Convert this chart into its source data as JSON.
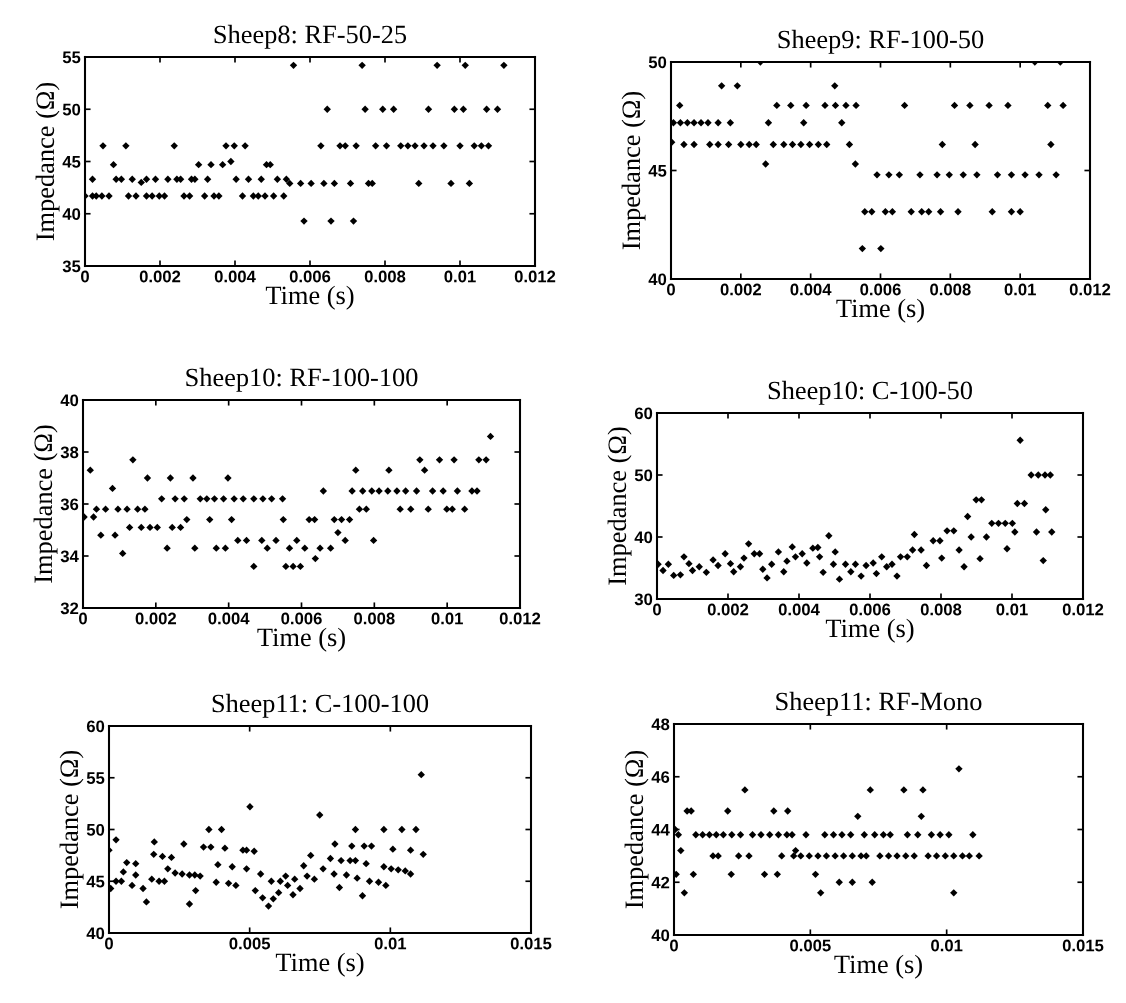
{
  "chart_data": [
    {
      "type": "scatter",
      "title": "Sheep8: RF-50-25",
      "xlabel": "Time (s)",
      "ylabel": "Impedance (Ω)",
      "color": "#000000",
      "marker": "diamond",
      "xlim": [
        0,
        0.012
      ],
      "ylim": [
        35,
        55
      ],
      "xticks": [
        0,
        0.002,
        0.004,
        0.006,
        0.008,
        0.01,
        0.012
      ],
      "yticks": [
        35,
        40,
        45,
        50,
        55
      ],
      "x": [
        0.0,
        0.0002,
        0.0003,
        0.00045,
        0.00064,
        0.00116,
        0.00136,
        0.00164,
        0.00179,
        0.00198,
        0.00212,
        0.00264,
        0.00279,
        0.00319,
        0.00344,
        0.00357,
        0.0042,
        0.00449,
        0.00462,
        0.0048,
        0.00503,
        0.0053,
        0.0002,
        0.00083,
        0.00097,
        0.00126,
        0.00164,
        0.00188,
        0.00221,
        0.00245,
        0.00255,
        0.00284,
        0.00293,
        0.00327,
        0.00403,
        0.00436,
        0.0047,
        0.00513,
        0.00537,
        0.0015,
        0.00076,
        0.00303,
        0.00336,
        0.00367,
        0.00389,
        0.00484,
        0.00494,
        0.00048,
        0.00109,
        0.00238,
        0.00376,
        0.00398,
        0.00427,
        0.00629,
        0.0068,
        0.00694,
        0.00723,
        0.00775,
        0.00804,
        0.00842,
        0.00861,
        0.0088,
        0.00904,
        0.00928,
        0.00957,
        0.01,
        0.01038,
        0.01057,
        0.01076,
        0.00546,
        0.00575,
        0.00603,
        0.00637,
        0.00665,
        0.00708,
        0.00756,
        0.00766,
        0.0089,
        0.00976,
        0.01025,
        0.00584,
        0.00656,
        0.00716,
        0.00646,
        0.00747,
        0.00794,
        0.00823,
        0.00916,
        0.00985,
        0.01009,
        0.01071,
        0.011,
        0.00556,
        0.00739,
        0.00939,
        0.01014,
        0.01117
      ],
      "values": [
        41.7,
        41.7,
        41.7,
        41.7,
        41.7,
        41.7,
        41.7,
        41.7,
        41.7,
        41.7,
        41.7,
        41.7,
        41.7,
        41.7,
        41.7,
        41.7,
        41.7,
        41.7,
        41.7,
        41.7,
        41.7,
        41.7,
        43.3,
        43.3,
        43.3,
        43.3,
        43.3,
        43.3,
        43.3,
        43.3,
        43.3,
        43.3,
        43.3,
        43.3,
        43.3,
        43.3,
        43.3,
        43.3,
        43.3,
        43.0,
        44.7,
        44.7,
        44.7,
        44.7,
        45.0,
        44.7,
        44.7,
        46.5,
        46.5,
        46.5,
        46.5,
        46.5,
        46.5,
        46.5,
        46.5,
        46.5,
        46.5,
        46.5,
        46.5,
        46.5,
        46.5,
        46.5,
        46.5,
        46.5,
        46.5,
        46.5,
        46.5,
        46.5,
        46.5,
        42.9,
        42.9,
        42.9,
        42.9,
        42.9,
        42.9,
        42.9,
        42.9,
        42.9,
        42.9,
        42.9,
        39.3,
        39.3,
        39.3,
        50.0,
        50.0,
        50.0,
        50.0,
        50.0,
        50.0,
        50.0,
        50.0,
        50.0,
        54.2,
        54.2,
        54.2,
        54.2,
        54.2
      ]
    },
    {
      "type": "scatter",
      "title": "Sheep9: RF-100-50",
      "xlabel": "Time (s)",
      "ylabel": "Impedance (Ω)",
      "color": "#000000",
      "marker": "diamond",
      "xlim": [
        0,
        0.012
      ],
      "ylim": [
        40,
        50
      ],
      "xticks": [
        0,
        0.002,
        0.004,
        0.006,
        0.008,
        0.01,
        0.012
      ],
      "yticks": [
        40,
        45,
        50
      ],
      "x": [
        7e-05,
        0.00027,
        0.00047,
        0.00066,
        0.00086,
        0.00106,
        0.00135,
        0.0017,
        0.00279,
        0.0038,
        0.00489,
        2e-05,
        0.00037,
        0.00066,
        0.00111,
        0.00135,
        0.00165,
        0.002,
        0.00224,
        0.00244,
        0.00293,
        0.00323,
        0.00348,
        0.00372,
        0.00397,
        0.00422,
        0.00446,
        0.00511,
        0.00777,
        0.00871,
        0.01088,
        0.00025,
        0.00303,
        0.00343,
        0.00387,
        0.00441,
        0.00471,
        0.00501,
        0.0053,
        0.00669,
        0.00812,
        0.00856,
        0.00911,
        0.00965,
        0.01079,
        0.01123,
        0.00145,
        0.0019,
        0.00469,
        0.00271,
        0.00528,
        0.0059,
        0.00624,
        0.00654,
        0.00713,
        0.00762,
        0.00797,
        0.00837,
        0.00876,
        0.00935,
        0.00975,
        0.01014,
        0.01054,
        0.01103,
        0.00555,
        0.00575,
        0.00614,
        0.00634,
        0.00688,
        0.00718,
        0.00738,
        0.00772,
        0.00822,
        0.0092,
        0.00975,
        0.01,
        0.00548,
        0.00601,
        0.00256,
        0.01042,
        0.01115
      ],
      "values": [
        47.2,
        47.2,
        47.2,
        47.2,
        47.2,
        47.2,
        47.2,
        47.2,
        47.2,
        47.2,
        47.2,
        46.3,
        46.2,
        46.2,
        46.2,
        46.2,
        46.2,
        46.2,
        46.2,
        46.2,
        46.2,
        46.2,
        46.2,
        46.2,
        46.2,
        46.2,
        46.2,
        46.2,
        46.2,
        46.2,
        46.2,
        48.0,
        48.0,
        48.0,
        48.0,
        48.0,
        48.0,
        48.0,
        48.0,
        48.0,
        48.0,
        48.0,
        48.0,
        48.0,
        48.0,
        48.0,
        48.9,
        48.9,
        48.9,
        45.3,
        45.3,
        44.8,
        44.8,
        44.8,
        44.8,
        44.8,
        44.8,
        44.8,
        44.8,
        44.8,
        44.8,
        44.8,
        44.8,
        44.8,
        43.1,
        43.1,
        43.1,
        43.1,
        43.1,
        43.1,
        43.1,
        43.1,
        43.1,
        43.1,
        43.1,
        43.1,
        41.4,
        41.4,
        50.0,
        50.0,
        50.0
      ]
    },
    {
      "type": "scatter",
      "title": "Sheep10: RF-100-100",
      "xlabel": "Time (s)",
      "ylabel": "Impedance (Ω)",
      "color": "#000000",
      "marker": "diamond",
      "xlim": [
        0,
        0.012
      ],
      "ylim": [
        32,
        40
      ],
      "xticks": [
        0,
        0.002,
        0.004,
        0.006,
        0.008,
        0.01,
        0.012
      ],
      "yticks": [
        32,
        34,
        36,
        38,
        40
      ],
      "x": [
        3e-05,
        0.0002,
        0.00029,
        0.00037,
        0.00062,
        0.00049,
        0.00081,
        0.00088,
        0.00096,
        0.00121,
        0.00109,
        0.00128,
        0.00137,
        0.0015,
        0.0017,
        0.0016,
        0.00184,
        0.00204,
        0.00177,
        0.00216,
        0.00231,
        0.0024,
        0.00245,
        0.00268,
        0.00253,
        0.00278,
        0.00285,
        0.00302,
        0.00307,
        0.00322,
        0.0034,
        0.00361,
        0.00386,
        0.00348,
        0.00366,
        0.00391,
        0.00398,
        0.00408,
        0.00415,
        0.0044,
        0.00469,
        0.00494,
        0.00518,
        0.00548,
        0.00425,
        0.00449,
        0.00469,
        0.00491,
        0.00506,
        0.0053,
        0.0055,
        0.00567,
        0.00557,
        0.00577,
        0.00597,
        0.00587,
        0.00609,
        0.00621,
        0.00636,
        0.00638,
        0.00651,
        0.0066,
        0.0068,
        0.0069,
        0.0071,
        0.00732,
        0.007,
        0.0072,
        0.00739,
        0.00749,
        0.00759,
        0.00778,
        0.00768,
        0.00793,
        0.00813,
        0.00837,
        0.00862,
        0.00886,
        0.00916,
        0.00798,
        0.0084,
        0.00871,
        0.009,
        0.00925,
        0.00938,
        0.00948,
        0.0096,
        0.00989,
        0.00979,
        0.00999,
        0.01014,
        0.01019,
        0.01028,
        0.01048,
        0.01068,
        0.01082,
        0.01087,
        0.01107,
        0.01119
      ],
      "values": [
        35.5,
        37.3,
        35.5,
        35.8,
        35.8,
        34.8,
        36.6,
        34.8,
        35.8,
        35.8,
        34.1,
        35.1,
        37.7,
        35.8,
        35.8,
        35.1,
        35.1,
        35.1,
        37.0,
        36.2,
        34.3,
        37.0,
        35.1,
        35.1,
        36.2,
        36.2,
        35.4,
        37.0,
        34.3,
        36.2,
        36.2,
        36.2,
        36.2,
        35.4,
        34.3,
        34.3,
        37.0,
        35.4,
        36.2,
        36.2,
        36.2,
        36.2,
        36.2,
        36.2,
        34.6,
        34.6,
        33.6,
        34.6,
        34.3,
        34.6,
        35.4,
        34.3,
        33.6,
        33.6,
        33.6,
        34.6,
        34.3,
        35.4,
        35.4,
        33.9,
        34.3,
        36.5,
        34.3,
        35.4,
        35.4,
        35.4,
        34.9,
        34.6,
        36.5,
        37.3,
        35.8,
        35.8,
        36.5,
        36.5,
        36.5,
        36.5,
        36.5,
        36.5,
        36.5,
        34.6,
        37.3,
        35.8,
        35.8,
        37.7,
        37.3,
        35.8,
        36.5,
        36.5,
        37.7,
        35.8,
        35.8,
        37.7,
        36.5,
        35.8,
        36.5,
        36.5,
        37.7,
        37.7,
        38.6
      ]
    },
    {
      "type": "scatter",
      "title": "Sheep10: C-100-50",
      "xlabel": "Time (s)",
      "ylabel": "Impedance (Ω)",
      "color": "#000000",
      "marker": "diamond",
      "xlim": [
        0,
        0.012
      ],
      "ylim": [
        30,
        60
      ],
      "xticks": [
        0,
        0.002,
        0.004,
        0.006,
        0.008,
        0.01,
        0.012
      ],
      "yticks": [
        30,
        40,
        50,
        60
      ],
      "x": [
        3e-05,
        0.00017,
        0.00032,
        0.00047,
        0.00066,
        0.00076,
        0.0009,
        0.001,
        0.00119,
        0.00139,
        0.00158,
        0.00172,
        0.00192,
        0.00207,
        0.00216,
        0.00235,
        0.00245,
        0.00258,
        0.00274,
        0.00289,
        0.00298,
        0.0031,
        0.00323,
        0.00342,
        0.00357,
        0.00366,
        0.00381,
        0.0039,
        0.00409,
        0.00422,
        0.00439,
        0.00453,
        0.00458,
        0.00468,
        0.00484,
        0.00497,
        0.00502,
        0.00514,
        0.00531,
        0.00546,
        0.00559,
        0.00575,
        0.00589,
        0.00609,
        0.00618,
        0.00633,
        0.00647,
        0.00662,
        0.00676,
        0.00686,
        0.00705,
        0.00725,
        0.0072,
        0.00744,
        0.00759,
        0.00778,
        0.00797,
        0.00802,
        0.00817,
        0.00836,
        0.00851,
        0.00865,
        0.00875,
        0.00885,
        0.00899,
        0.00914,
        0.0091,
        0.00928,
        0.00943,
        0.00962,
        0.00981,
        0.00986,
        0.01001,
        0.01008,
        0.01023,
        0.01015,
        0.01035,
        0.01054,
        0.01074,
        0.01093,
        0.01108,
        0.01069,
        0.01088,
        0.01095,
        0.01112
      ],
      "values": [
        35.6,
        34.6,
        35.6,
        33.8,
        33.9,
        36.8,
        35.7,
        34.6,
        35.2,
        34.3,
        36.3,
        35.4,
        37.3,
        35.7,
        34.4,
        35.2,
        36.6,
        38.9,
        37.3,
        37.3,
        34.8,
        33.4,
        35.6,
        37.6,
        34.4,
        36.1,
        38.4,
        36.8,
        37.3,
        35.8,
        38.2,
        38.3,
        36.8,
        34.3,
        40.2,
        35.6,
        37.6,
        33.2,
        35.6,
        34.4,
        35.6,
        33.7,
        35.4,
        35.8,
        34.1,
        36.8,
        35.2,
        35.6,
        33.7,
        36.8,
        36.8,
        40.4,
        37.9,
        37.9,
        35.4,
        39.4,
        39.4,
        36.6,
        41.0,
        41.0,
        37.9,
        35.2,
        43.3,
        40.0,
        46.0,
        46.0,
        36.5,
        40.0,
        42.2,
        42.2,
        42.2,
        38.1,
        42.2,
        40.8,
        55.6,
        45.4,
        45.4,
        50.0,
        50.0,
        50.0,
        50.0,
        40.8,
        36.2,
        44.4,
        40.8
      ]
    },
    {
      "type": "scatter",
      "title": "Sheep11: C-100-100",
      "xlabel": "Time (s)",
      "ylabel": "Impedance (Ω)",
      "color": "#000000",
      "marker": "diamond",
      "xlim": [
        0,
        0.015
      ],
      "ylim": [
        40,
        60
      ],
      "xticks": [
        0,
        0.005,
        0.01,
        0.015
      ],
      "yticks": [
        40,
        45,
        50,
        55,
        60
      ],
      "x": [
        0.0,
        6e-05,
        0.00025,
        0.00044,
        0.00025,
        0.00051,
        0.00063,
        0.00095,
        0.00082,
        0.00095,
        0.00121,
        0.00133,
        0.00152,
        0.00159,
        0.00161,
        0.00178,
        0.00197,
        0.0019,
        0.00222,
        0.00209,
        0.00235,
        0.0026,
        0.00286,
        0.00305,
        0.00324,
        0.00266,
        0.00286,
        0.00308,
        0.00336,
        0.00362,
        0.00355,
        0.00381,
        0.00387,
        0.004,
        0.00412,
        0.00425,
        0.00451,
        0.00438,
        0.00476,
        0.00489,
        0.00489,
        0.00501,
        0.00516,
        0.0052,
        0.00539,
        0.00546,
        0.00567,
        0.00584,
        0.00577,
        0.00609,
        0.00603,
        0.00628,
        0.00635,
        0.00654,
        0.0066,
        0.00679,
        0.00692,
        0.00704,
        0.0073,
        0.00717,
        0.00749,
        0.00761,
        0.00787,
        0.00803,
        0.008,
        0.00819,
        0.00825,
        0.00857,
        0.00876,
        0.00844,
        0.00863,
        0.00876,
        0.00882,
        0.00901,
        0.00907,
        0.00933,
        0.00914,
        0.00926,
        0.00958,
        0.00977,
        0.00984,
        0.00977,
        0.01003,
        0.01028,
        0.01053,
        0.01072,
        0.01009,
        0.01041,
        0.01091,
        0.01072,
        0.0111,
        0.01117
      ],
      "values": [
        48.0,
        44.3,
        45.0,
        45.0,
        49.0,
        45.9,
        46.8,
        46.7,
        44.6,
        45.6,
        44.3,
        43.0,
        45.2,
        47.6,
        48.8,
        45.0,
        45.0,
        47.4,
        47.3,
        46.2,
        45.8,
        45.7,
        45.6,
        45.6,
        45.5,
        48.6,
        42.8,
        44.1,
        48.3,
        48.3,
        50.0,
        44.9,
        46.6,
        50.0,
        48.2,
        44.8,
        44.6,
        46.4,
        48.0,
        48.0,
        46.2,
        52.2,
        47.9,
        44.1,
        45.7,
        43.4,
        42.6,
        43.3,
        45.0,
        45.0,
        43.9,
        45.5,
        44.6,
        43.7,
        45.2,
        44.3,
        46.5,
        45.5,
        45.2,
        47.5,
        51.4,
        46.2,
        47.2,
        48.6,
        45.7,
        44.4,
        47.0,
        47.0,
        47.0,
        45.6,
        48.4,
        50.0,
        45.3,
        43.6,
        48.4,
        48.4,
        46.7,
        45.0,
        44.9,
        50.0,
        44.6,
        46.4,
        46.2,
        46.1,
        46.0,
        45.7,
        48.1,
        50.0,
        50.0,
        48.0,
        55.3,
        47.6
      ]
    },
    {
      "type": "scatter",
      "title": "Sheep11: RF-Mono",
      "xlabel": "Time (s)",
      "ylabel": "Impedance (Ω)",
      "color": "#000000",
      "marker": "diamond",
      "xlim": [
        0,
        0.015
      ],
      "ylim": [
        40,
        48
      ],
      "xticks": [
        0,
        0.005,
        0.01,
        0.015
      ],
      "yticks": [
        40,
        42,
        44,
        46,
        48
      ],
      "x": [
        4e-05,
        0.00016,
        8e-05,
        0.00025,
        0.00038,
        0.00048,
        0.00063,
        0.00071,
        0.0008,
        0.00105,
        0.0013,
        0.00155,
        0.00181,
        0.00143,
        0.00162,
        0.00197,
        0.0021,
        0.00212,
        0.00244,
        0.00237,
        0.00275,
        0.0026,
        0.00288,
        0.00319,
        0.00351,
        0.00383,
        0.00414,
        0.00433,
        0.00332,
        0.00366,
        0.00379,
        0.00395,
        0.00417,
        0.00446,
        0.00439,
        0.00465,
        0.00496,
        0.00528,
        0.00559,
        0.00591,
        0.00622,
        0.00654,
        0.00686,
        0.00705,
        0.00484,
        0.00519,
        0.00538,
        0.00553,
        0.00585,
        0.00616,
        0.00648,
        0.00606,
        0.00654,
        0.00674,
        0.00698,
        0.00736,
        0.00768,
        0.00793,
        0.0072,
        0.00727,
        0.00755,
        0.00787,
        0.00818,
        0.0085,
        0.00881,
        0.00843,
        0.00856,
        0.00894,
        0.00907,
        0.00913,
        0.00932,
        0.00963,
        0.00995,
        0.01026,
        0.01058,
        0.01083,
        0.01119,
        0.00944,
        0.00976,
        0.01008,
        0.01026,
        0.01045,
        0.01096
      ],
      "values": [
        44.0,
        43.8,
        42.3,
        43.2,
        41.6,
        44.7,
        44.7,
        42.3,
        43.8,
        43.8,
        43.8,
        43.8,
        43.8,
        43.0,
        43.0,
        44.7,
        42.3,
        43.8,
        43.8,
        43.0,
        43.0,
        45.5,
        43.8,
        43.8,
        43.8,
        43.8,
        43.8,
        43.8,
        42.3,
        44.7,
        42.3,
        43.0,
        44.7,
        43.2,
        43.0,
        43.0,
        43.0,
        43.0,
        43.0,
        43.0,
        43.0,
        43.0,
        43.0,
        43.0,
        43.8,
        42.3,
        41.6,
        43.8,
        43.8,
        43.8,
        43.8,
        42.0,
        42.0,
        44.5,
        43.8,
        43.8,
        43.8,
        43.8,
        45.5,
        42.0,
        43.0,
        43.0,
        43.0,
        43.0,
        43.0,
        45.5,
        43.8,
        43.8,
        44.5,
        45.5,
        43.0,
        43.0,
        43.0,
        43.0,
        43.0,
        43.0,
        43.0,
        43.8,
        43.8,
        43.8,
        41.6,
        46.3,
        43.8
      ]
    }
  ]
}
